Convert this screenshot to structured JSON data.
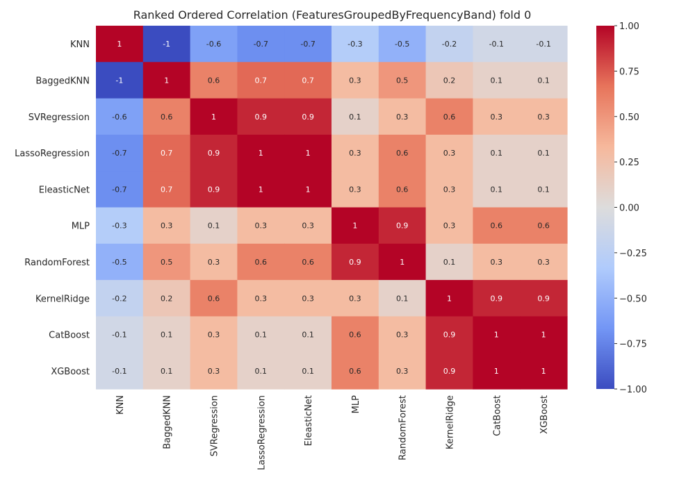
{
  "chart_data": {
    "type": "heatmap",
    "title": "Ranked Ordered Correlation (FeaturesGroupedByFrequencyBand) fold 0",
    "x_labels": [
      "KNN",
      "BaggedKNN",
      "SVRegression",
      "LassoRegression",
      "EleasticNet",
      "MLP",
      "RandomForest",
      "KernelRidge",
      "CatBoost",
      "XGBoost"
    ],
    "y_labels": [
      "KNN",
      "BaggedKNN",
      "SVRegression",
      "LassoRegression",
      "EleasticNet",
      "MLP",
      "RandomForest",
      "KernelRidge",
      "CatBoost",
      "XGBoost"
    ],
    "values": [
      [
        1,
        -1,
        -0.6,
        -0.7,
        -0.7,
        -0.3,
        -0.5,
        -0.2,
        -0.1,
        -0.1
      ],
      [
        -1,
        1,
        0.6,
        0.7,
        0.7,
        0.3,
        0.5,
        0.2,
        0.1,
        0.1
      ],
      [
        -0.6,
        0.6,
        1,
        0.9,
        0.9,
        0.1,
        0.3,
        0.6,
        0.3,
        0.3
      ],
      [
        -0.7,
        0.7,
        0.9,
        1,
        1,
        0.3,
        0.6,
        0.3,
        0.1,
        0.1
      ],
      [
        -0.7,
        0.7,
        0.9,
        1,
        1,
        0.3,
        0.6,
        0.3,
        0.1,
        0.1
      ],
      [
        -0.3,
        0.3,
        0.1,
        0.3,
        0.3,
        1,
        0.9,
        0.3,
        0.6,
        0.6
      ],
      [
        -0.5,
        0.5,
        0.3,
        0.6,
        0.6,
        0.9,
        1,
        0.1,
        0.3,
        0.3
      ],
      [
        -0.2,
        0.2,
        0.6,
        0.3,
        0.3,
        0.3,
        0.1,
        1,
        0.9,
        0.9
      ],
      [
        -0.1,
        0.1,
        0.3,
        0.1,
        0.1,
        0.6,
        0.3,
        0.9,
        1,
        1
      ],
      [
        -0.1,
        0.1,
        0.3,
        0.1,
        0.1,
        0.6,
        0.3,
        0.9,
        1,
        1
      ]
    ],
    "value_labels": [
      [
        "1",
        "-1",
        "-0.6",
        "-0.7",
        "-0.7",
        "-0.3",
        "-0.5",
        "-0.2",
        "-0.1",
        "-0.1"
      ],
      [
        "-1",
        "1",
        "0.6",
        "0.7",
        "0.7",
        "0.3",
        "0.5",
        "0.2",
        "0.1",
        "0.1"
      ],
      [
        "-0.6",
        "0.6",
        "1",
        "0.9",
        "0.9",
        "0.1",
        "0.3",
        "0.6",
        "0.3",
        "0.3"
      ],
      [
        "-0.7",
        "0.7",
        "0.9",
        "1",
        "1",
        "0.3",
        "0.6",
        "0.3",
        "0.1",
        "0.1"
      ],
      [
        "-0.7",
        "0.7",
        "0.9",
        "1",
        "1",
        "0.3",
        "0.6",
        "0.3",
        "0.1",
        "0.1"
      ],
      [
        "-0.3",
        "0.3",
        "0.1",
        "0.3",
        "0.3",
        "1",
        "0.9",
        "0.3",
        "0.6",
        "0.6"
      ],
      [
        "-0.5",
        "0.5",
        "0.3",
        "0.6",
        "0.6",
        "0.9",
        "1",
        "0.1",
        "0.3",
        "0.3"
      ],
      [
        "-0.2",
        "0.2",
        "0.6",
        "0.3",
        "0.3",
        "0.3",
        "0.1",
        "1",
        "0.9",
        "0.9"
      ],
      [
        "-0.1",
        "0.1",
        "0.3",
        "0.1",
        "0.1",
        "0.6",
        "0.3",
        "0.9",
        "1",
        "1"
      ],
      [
        "-0.1",
        "0.1",
        "0.3",
        "0.1",
        "0.1",
        "0.6",
        "0.3",
        "0.9",
        "1",
        "1"
      ]
    ],
    "colormap": "coolwarm",
    "colormap_stops": [
      "#3b4cc0",
      "#7396f5",
      "#b0cbfc",
      "#dddcdc",
      "#f6b89c",
      "#e7745b",
      "#b40426"
    ],
    "color_range": [
      -1,
      1
    ],
    "colorbar_ticks": [
      1.0,
      0.75,
      0.5,
      0.25,
      0.0,
      -0.25,
      -0.5,
      -0.75,
      -1.0
    ],
    "colorbar_tick_labels": [
      "1.00",
      "0.75",
      "0.50",
      "0.25",
      "0.00",
      "−0.25",
      "−0.50",
      "−0.75",
      "−1.00"
    ],
    "grid": false,
    "legend": "colorbar-right"
  }
}
